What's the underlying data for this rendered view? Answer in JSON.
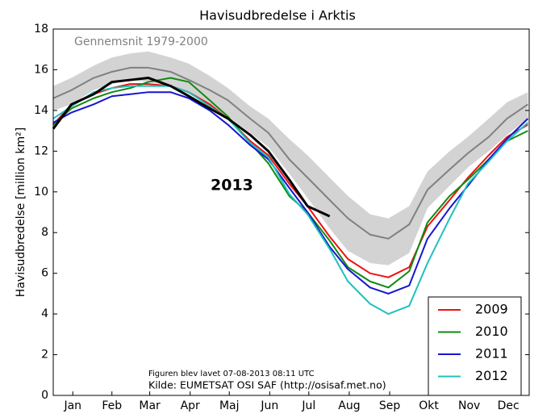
{
  "chart_data": {
    "type": "line",
    "title": "Havisudbredelse i Arktis",
    "ylabel": "Havisudbredelse [million km²]",
    "footnotes": [
      "Figuren blev lavet 07-08-2013 08:11 UTC",
      "Kilde: EUMETSAT OSI SAF (http://osisaf.met.no)"
    ],
    "x": [
      1,
      15,
      32,
      46,
      60,
      74,
      91,
      105,
      121,
      135,
      152,
      166,
      182,
      196,
      213,
      227,
      244,
      258,
      274,
      288,
      305,
      319,
      335,
      349,
      365
    ],
    "xlim": [
      1,
      366
    ],
    "xticks": [
      {
        "value": 16,
        "label": "Jan"
      },
      {
        "value": 46,
        "label": "Feb"
      },
      {
        "value": 75,
        "label": "Mar"
      },
      {
        "value": 106,
        "label": "Apr"
      },
      {
        "value": 136,
        "label": "Maj"
      },
      {
        "value": 167,
        "label": "Jun"
      },
      {
        "value": 197,
        "label": "Jul"
      },
      {
        "value": 228,
        "label": "Aug"
      },
      {
        "value": 259,
        "label": "Sep"
      },
      {
        "value": 289,
        "label": "Okt"
      },
      {
        "value": 320,
        "label": "Nov"
      },
      {
        "value": 350,
        "label": "Dec"
      }
    ],
    "ylim": [
      0,
      18
    ],
    "yticks": [
      0,
      2,
      4,
      6,
      8,
      10,
      12,
      14,
      16,
      18
    ],
    "grid": false,
    "legend": "lower right",
    "band": {
      "color": "#d3d3d3",
      "upper": [
        15.2,
        15.6,
        16.2,
        16.6,
        16.8,
        16.9,
        16.6,
        16.3,
        15.7,
        15.1,
        14.2,
        13.6,
        12.6,
        11.8,
        10.7,
        9.8,
        8.9,
        8.7,
        9.3,
        11.0,
        12.0,
        12.7,
        13.6,
        14.4,
        14.9
      ],
      "lower": [
        14.0,
        14.3,
        15.0,
        15.3,
        15.5,
        15.4,
        15.2,
        14.8,
        14.3,
        13.7,
        12.9,
        12.2,
        10.9,
        9.7,
        8.2,
        7.1,
        6.5,
        6.4,
        7.0,
        9.2,
        10.3,
        11.2,
        12.0,
        12.8,
        13.6
      ]
    },
    "series": [
      {
        "name": "Gennemsnit 1979-2000",
        "color": "#808080",
        "in_legend": false,
        "values": [
          14.6,
          15.0,
          15.6,
          15.9,
          16.1,
          16.1,
          15.9,
          15.5,
          15.0,
          14.5,
          13.6,
          12.9,
          11.6,
          10.7,
          9.6,
          8.7,
          7.9,
          7.7,
          8.4,
          10.1,
          11.1,
          11.9,
          12.7,
          13.6,
          14.3
        ]
      },
      {
        "name": "2009",
        "color": "#ee1111",
        "in_legend": true,
        "values": [
          13.3,
          14.3,
          14.8,
          15.1,
          15.3,
          15.3,
          15.2,
          14.9,
          14.3,
          13.6,
          12.5,
          11.8,
          10.4,
          9.3,
          7.8,
          6.7,
          6.0,
          5.8,
          6.3,
          8.3,
          9.6,
          10.7,
          11.8,
          12.7,
          13.3
        ]
      },
      {
        "name": "2010",
        "color": "#108a10",
        "in_legend": true,
        "values": [
          13.3,
          14.1,
          14.6,
          14.9,
          15.1,
          15.4,
          15.6,
          15.4,
          14.5,
          13.7,
          12.4,
          11.4,
          9.8,
          9.0,
          7.6,
          6.3,
          5.6,
          5.3,
          6.1,
          8.5,
          9.8,
          10.6,
          11.6,
          12.5,
          13.0
        ]
      },
      {
        "name": "2011",
        "color": "#1515d0",
        "in_legend": true,
        "values": [
          13.4,
          13.9,
          14.3,
          14.7,
          14.8,
          14.9,
          14.9,
          14.6,
          14.0,
          13.3,
          12.3,
          11.6,
          10.2,
          9.0,
          7.3,
          6.2,
          5.3,
          5.0,
          5.4,
          7.7,
          9.2,
          10.3,
          11.6,
          12.6,
          13.6
        ]
      },
      {
        "name": "2012",
        "color": "#20c0c0",
        "in_legend": true,
        "values": [
          13.6,
          14.2,
          14.9,
          15.1,
          15.2,
          15.2,
          15.2,
          14.9,
          14.2,
          13.6,
          12.4,
          11.7,
          9.9,
          8.9,
          7.2,
          5.6,
          4.5,
          4.0,
          4.4,
          6.5,
          8.7,
          10.4,
          11.5,
          12.5,
          13.4
        ]
      },
      {
        "name": "2013",
        "color": "#000000",
        "in_legend": false,
        "values": [
          13.1,
          14.3,
          14.8,
          15.4,
          15.5,
          15.6,
          15.2,
          14.7,
          14.1,
          13.6,
          12.8,
          12.0,
          10.6,
          9.3,
          8.8,
          null,
          null,
          null,
          null,
          null,
          null,
          null,
          null,
          null,
          null
        ]
      }
    ]
  }
}
